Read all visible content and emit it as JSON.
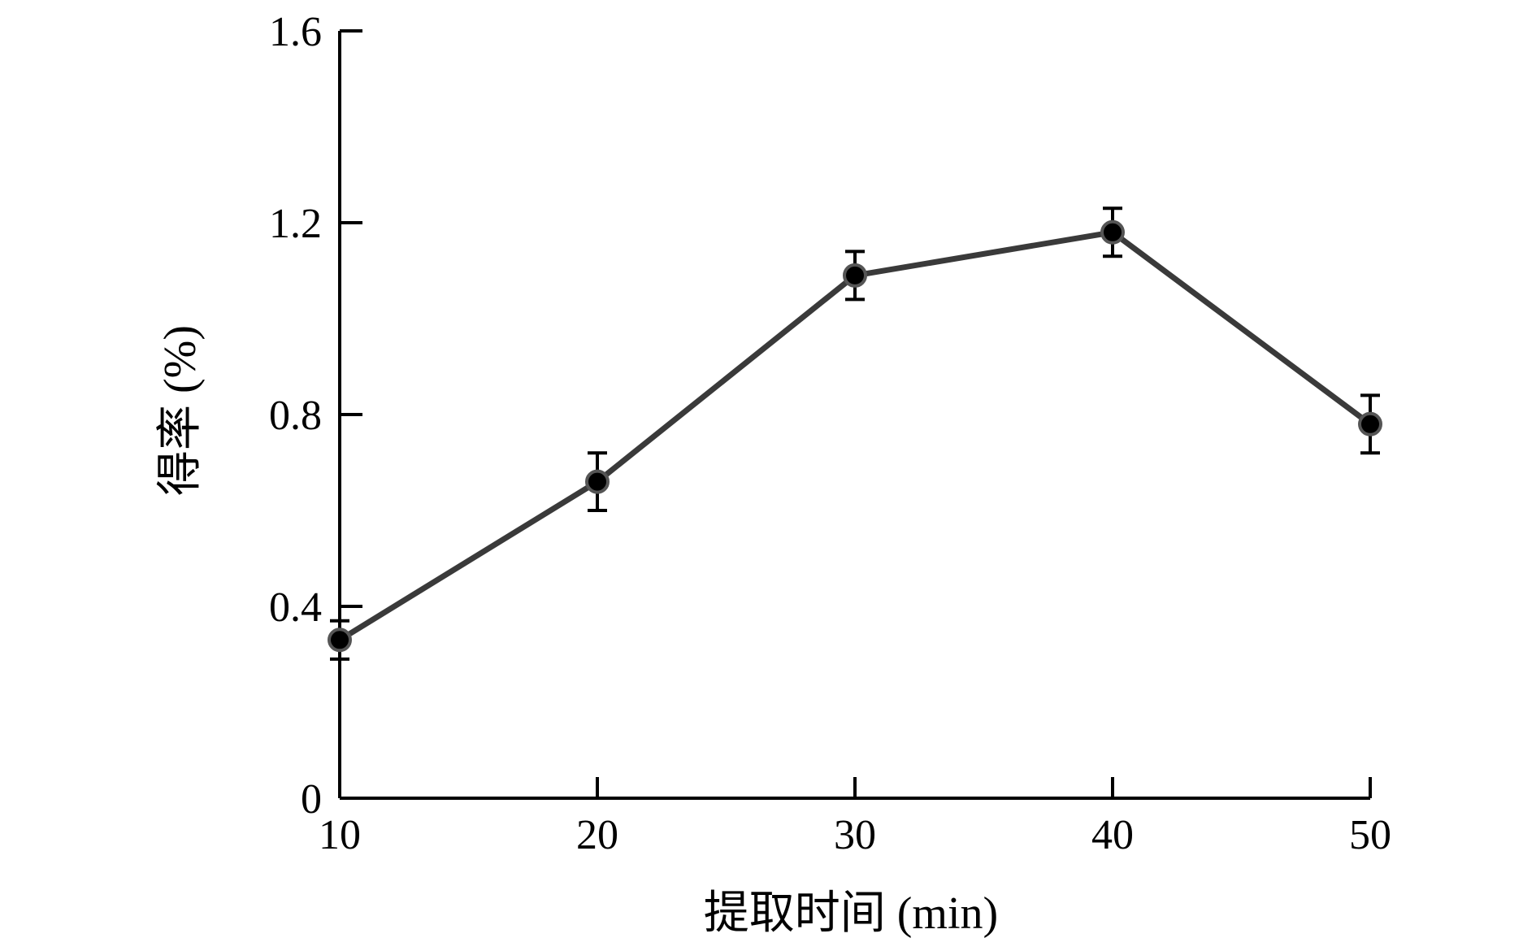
{
  "chart_data": {
    "type": "line",
    "xlabel": "提取时间 (min)",
    "ylabel": "得率 (%)",
    "x": [
      10,
      20,
      30,
      40,
      50
    ],
    "series": [
      {
        "values": [
          0.33,
          0.66,
          1.09,
          1.18,
          0.78
        ],
        "error": [
          0.04,
          0.06,
          0.05,
          0.05,
          0.06
        ]
      }
    ],
    "xlim": [
      10,
      50
    ],
    "ylim": [
      0,
      1.6
    ],
    "x_ticks": [
      "10",
      "20",
      "30",
      "40",
      "50"
    ],
    "y_ticks": [
      "0",
      "0.4",
      "0.8",
      "1.2",
      "1.6"
    ],
    "grid": false,
    "colors": {
      "line": "#3a3a3a",
      "marker": "#000000",
      "axis": "#000000"
    }
  }
}
